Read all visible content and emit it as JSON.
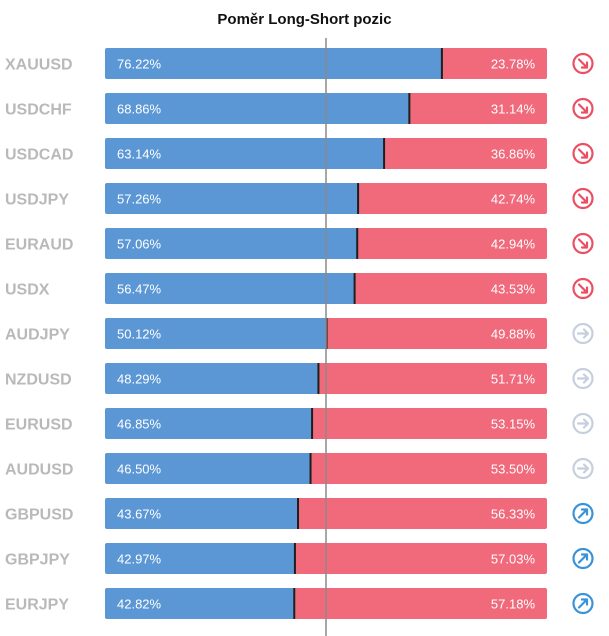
{
  "title": "Poměr Long-Short pozic",
  "colors": {
    "long": "#5b97d5",
    "short": "#f06a7c",
    "label": "#b9b9b9",
    "center_line": "#8a8a8a",
    "divider": "#1e1e1e",
    "arrow_down": "#ea4f62",
    "arrow_neutral": "#c5cfdd",
    "arrow_up": "#3a93d8"
  },
  "chart_data": {
    "type": "bar",
    "stacked": true,
    "orientation": "horizontal",
    "title": "Poměr Long-Short pozic",
    "xlim": [
      0,
      100
    ],
    "unit": "%",
    "categories": [
      "XAUUSD",
      "USDCHF",
      "USDCAD",
      "USDJPY",
      "EURAUD",
      "USDX",
      "AUDJPY",
      "NZDUSD",
      "EURUSD",
      "AUDUSD",
      "GBPUSD",
      "GBPJPY",
      "EURJPY"
    ],
    "series": [
      {
        "values": [
          76.22,
          68.86,
          63.14,
          57.26,
          57.06,
          56.47,
          50.12,
          48.29,
          46.85,
          46.5,
          43.67,
          42.97,
          42.82
        ]
      },
      {
        "values": [
          23.78,
          31.14,
          36.86,
          42.74,
          42.94,
          43.53,
          49.88,
          51.71,
          53.15,
          53.5,
          56.33,
          57.03,
          57.18
        ]
      }
    ],
    "long_labels": [
      "76.22%",
      "68.86%",
      "63.14%",
      "57.26%",
      "57.06%",
      "56.47%",
      "50.12%",
      "48.29%",
      "46.85%",
      "46.50%",
      "43.67%",
      "42.97%",
      "42.82%"
    ],
    "short_labels": [
      "23.78%",
      "31.14%",
      "36.86%",
      "42.74%",
      "42.94%",
      "43.53%",
      "49.88%",
      "51.71%",
      "53.15%",
      "53.50%",
      "56.33%",
      "57.03%",
      "57.18%"
    ],
    "trend_icons": [
      "arrow-down-right",
      "arrow-down-right",
      "arrow-down-right",
      "arrow-down-right",
      "arrow-down-right",
      "arrow-down-right",
      "arrow-right",
      "arrow-right",
      "arrow-right",
      "arrow-right",
      "arrow-up-right",
      "arrow-up-right",
      "arrow-up-right"
    ],
    "reference_line": 50,
    "grid": false,
    "legend": "none"
  }
}
